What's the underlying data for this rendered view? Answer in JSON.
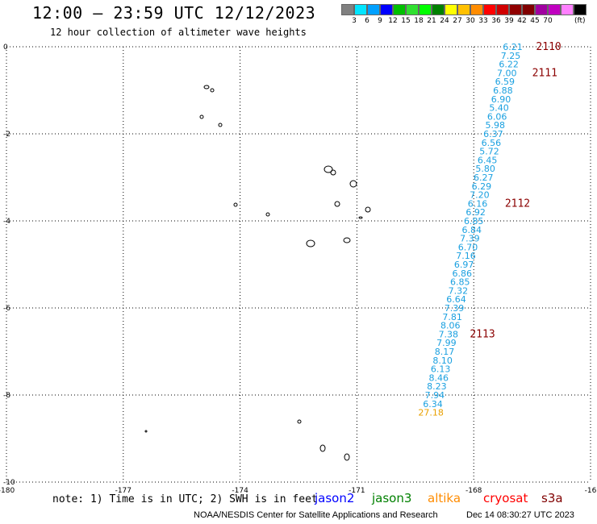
{
  "header": {
    "title": "12:00 — 23:59 UTC 12/12/2023",
    "subtitle": "12 hour collection of altimeter wave heights"
  },
  "color_scale": {
    "colors": [
      "#808080",
      "#00e5ff",
      "#00a0ff",
      "#0000ff",
      "#00c000",
      "#30e030",
      "#00ff00",
      "#008000",
      "#ffff00",
      "#ffc000",
      "#ff8c00",
      "#ff0000",
      "#d00000",
      "#900000",
      "#800000",
      "#a000a0",
      "#c000c0",
      "#ff80ff",
      "#000000"
    ],
    "labels": [
      "3",
      "6",
      "9",
      "12",
      "15",
      "18",
      "21",
      "24",
      "27",
      "30",
      "33",
      "36",
      "39",
      "42",
      "45",
      "70"
    ],
    "unit": "(ft)"
  },
  "axes": {
    "x_ticks": [
      "-180",
      "-177",
      "-174",
      "-171",
      "-168",
      "-16"
    ],
    "y_ticks": [
      "0",
      "-2",
      "-4",
      "-6",
      "-8",
      "-10"
    ]
  },
  "chart_data": {
    "type": "scatter",
    "xlim": [
      -180,
      -165
    ],
    "ylim": [
      -10,
      0
    ],
    "grid": true,
    "swh_points": [
      {
        "x": -167.0,
        "y": 0.0,
        "v": "6.21"
      },
      {
        "x": -167.05,
        "y": -0.2,
        "v": "7.25"
      },
      {
        "x": -167.1,
        "y": -0.4,
        "v": "6.22"
      },
      {
        "x": -167.15,
        "y": -0.6,
        "v": "7.00"
      },
      {
        "x": -167.2,
        "y": -0.8,
        "v": "6.59"
      },
      {
        "x": -167.25,
        "y": -1.0,
        "v": "6.88"
      },
      {
        "x": -167.3,
        "y": -1.2,
        "v": "6.90"
      },
      {
        "x": -167.35,
        "y": -1.4,
        "v": "5.40"
      },
      {
        "x": -167.4,
        "y": -1.6,
        "v": "6.06"
      },
      {
        "x": -167.45,
        "y": -1.8,
        "v": "5.98"
      },
      {
        "x": -167.5,
        "y": -2.0,
        "v": "6.37"
      },
      {
        "x": -167.55,
        "y": -2.2,
        "v": "6.56"
      },
      {
        "x": -167.6,
        "y": -2.4,
        "v": "5.72"
      },
      {
        "x": -167.65,
        "y": -2.6,
        "v": "6.45"
      },
      {
        "x": -167.7,
        "y": -2.8,
        "v": "5.80"
      },
      {
        "x": -167.75,
        "y": -3.0,
        "v": "6.27"
      },
      {
        "x": -167.8,
        "y": -3.2,
        "v": "6.29"
      },
      {
        "x": -167.85,
        "y": -3.4,
        "v": "7.20"
      },
      {
        "x": -167.9,
        "y": -3.6,
        "v": "6.16"
      },
      {
        "x": -167.95,
        "y": -3.8,
        "v": "6.92"
      },
      {
        "x": -168.0,
        "y": -4.0,
        "v": "6.85"
      },
      {
        "x": -168.05,
        "y": -4.2,
        "v": "6.84"
      },
      {
        "x": -168.1,
        "y": -4.4,
        "v": "7.39"
      },
      {
        "x": -168.15,
        "y": -4.6,
        "v": "6.70"
      },
      {
        "x": -168.2,
        "y": -4.8,
        "v": "7.16"
      },
      {
        "x": -168.25,
        "y": -5.0,
        "v": "6.97"
      },
      {
        "x": -168.3,
        "y": -5.2,
        "v": "6.86"
      },
      {
        "x": -168.35,
        "y": -5.4,
        "v": "6.85"
      },
      {
        "x": -168.4,
        "y": -5.6,
        "v": "7.32"
      },
      {
        "x": -168.45,
        "y": -5.8,
        "v": "6.64"
      },
      {
        "x": -168.5,
        "y": -6.0,
        "v": "7.39"
      },
      {
        "x": -168.55,
        "y": -6.2,
        "v": "7.81"
      },
      {
        "x": -168.6,
        "y": -6.4,
        "v": "8.06"
      },
      {
        "x": -168.65,
        "y": -6.6,
        "v": "7.38"
      },
      {
        "x": -168.7,
        "y": -6.8,
        "v": "7.99"
      },
      {
        "x": -168.75,
        "y": -7.0,
        "v": "8.17"
      },
      {
        "x": -168.8,
        "y": -7.2,
        "v": "8.10"
      },
      {
        "x": -168.85,
        "y": -7.4,
        "v": "6.13"
      },
      {
        "x": -168.9,
        "y": -7.6,
        "v": "8.46"
      },
      {
        "x": -168.95,
        "y": -7.8,
        "v": "8.23"
      },
      {
        "x": -169.0,
        "y": -8.0,
        "v": "7.94"
      },
      {
        "x": -169.05,
        "y": -8.2,
        "v": "6.34"
      },
      {
        "x": -169.1,
        "y": -8.4,
        "v": "27.18",
        "color": "#e8a000"
      }
    ],
    "time_labels": [
      {
        "x": -166.4,
        "y": 0.0,
        "text": "2110"
      },
      {
        "x": -166.5,
        "y": -0.6,
        "text": "2111"
      },
      {
        "x": -167.2,
        "y": -3.6,
        "text": "2112"
      },
      {
        "x": -168.1,
        "y": -6.6,
        "text": "2113"
      }
    ]
  },
  "legend": {
    "items": [
      {
        "label": "jason2",
        "color": "#0000ff"
      },
      {
        "label": "jason3",
        "color": "#008000"
      },
      {
        "label": "altika",
        "color": "#ff8c00"
      },
      {
        "label": "cryosat",
        "color": "#ff0000"
      },
      {
        "label": "s3a",
        "color": "#800000"
      }
    ]
  },
  "note": "note:  1) Time is in UTC; 2) SWH is in feet",
  "footer": {
    "credit": "NOAA/NESDIS Center for Satellite Applications and Research",
    "generated": "Dec 14 08:30:27 UTC 2023"
  },
  "colors": {
    "swh_text": "#1aa0e0",
    "time_label": "#8b0000",
    "grid": "#000000"
  }
}
